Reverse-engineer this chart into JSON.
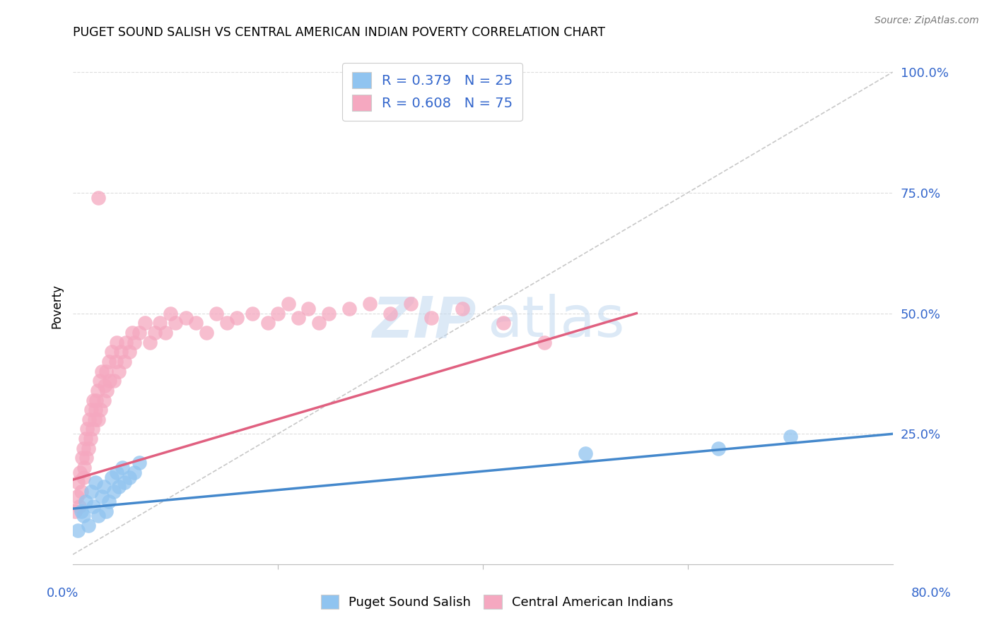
{
  "title": "PUGET SOUND SALISH VS CENTRAL AMERICAN INDIAN POVERTY CORRELATION CHART",
  "source": "Source: ZipAtlas.com",
  "ylabel": "Poverty",
  "xlim": [
    0.0,
    0.8
  ],
  "ylim": [
    -0.02,
    1.05
  ],
  "blue_R": 0.379,
  "blue_N": 25,
  "pink_R": 0.608,
  "pink_N": 75,
  "blue_color": "#90C4F0",
  "pink_color": "#F5A8C0",
  "blue_line_color": "#4488CC",
  "pink_line_color": "#E06080",
  "diag_color": "#C8C8C8",
  "legend_text_color": "#3366CC",
  "grid_color": "#DDDDDD",
  "blue_points_x": [
    0.005,
    0.008,
    0.01,
    0.012,
    0.015,
    0.018,
    0.02,
    0.022,
    0.025,
    0.028,
    0.03,
    0.032,
    0.035,
    0.038,
    0.04,
    0.043,
    0.045,
    0.048,
    0.05,
    0.055,
    0.06,
    0.065,
    0.5,
    0.63,
    0.7
  ],
  "blue_points_y": [
    0.05,
    0.09,
    0.08,
    0.11,
    0.06,
    0.13,
    0.1,
    0.15,
    0.08,
    0.12,
    0.14,
    0.09,
    0.11,
    0.16,
    0.13,
    0.17,
    0.14,
    0.18,
    0.15,
    0.16,
    0.17,
    0.19,
    0.21,
    0.22,
    0.245
  ],
  "pink_points_x": [
    0.002,
    0.004,
    0.005,
    0.006,
    0.007,
    0.008,
    0.009,
    0.01,
    0.01,
    0.011,
    0.012,
    0.013,
    0.014,
    0.015,
    0.016,
    0.017,
    0.018,
    0.019,
    0.02,
    0.021,
    0.022,
    0.023,
    0.024,
    0.025,
    0.026,
    0.027,
    0.028,
    0.03,
    0.031,
    0.032,
    0.033,
    0.035,
    0.036,
    0.038,
    0.04,
    0.042,
    0.043,
    0.045,
    0.047,
    0.05,
    0.052,
    0.055,
    0.058,
    0.06,
    0.065,
    0.07,
    0.075,
    0.08,
    0.085,
    0.09,
    0.095,
    0.1,
    0.11,
    0.12,
    0.13,
    0.14,
    0.15,
    0.16,
    0.175,
    0.19,
    0.2,
    0.21,
    0.22,
    0.23,
    0.24,
    0.25,
    0.27,
    0.29,
    0.31,
    0.33,
    0.35,
    0.38,
    0.42,
    0.46,
    0.025
  ],
  "pink_points_y": [
    0.09,
    0.12,
    0.15,
    0.1,
    0.17,
    0.13,
    0.2,
    0.16,
    0.22,
    0.18,
    0.24,
    0.2,
    0.26,
    0.22,
    0.28,
    0.24,
    0.3,
    0.26,
    0.32,
    0.28,
    0.3,
    0.32,
    0.34,
    0.28,
    0.36,
    0.3,
    0.38,
    0.32,
    0.35,
    0.38,
    0.34,
    0.4,
    0.36,
    0.42,
    0.36,
    0.4,
    0.44,
    0.38,
    0.42,
    0.4,
    0.44,
    0.42,
    0.46,
    0.44,
    0.46,
    0.48,
    0.44,
    0.46,
    0.48,
    0.46,
    0.5,
    0.48,
    0.49,
    0.48,
    0.46,
    0.5,
    0.48,
    0.49,
    0.5,
    0.48,
    0.5,
    0.52,
    0.49,
    0.51,
    0.48,
    0.5,
    0.51,
    0.52,
    0.5,
    0.52,
    0.49,
    0.51,
    0.48,
    0.44,
    0.74
  ],
  "blue_line_x0": 0.0,
  "blue_line_y0": 0.095,
  "blue_line_x1": 0.8,
  "blue_line_y1": 0.25,
  "pink_line_x0": 0.0,
  "pink_line_y0": 0.155,
  "pink_line_x1": 0.55,
  "pink_line_y1": 0.5
}
